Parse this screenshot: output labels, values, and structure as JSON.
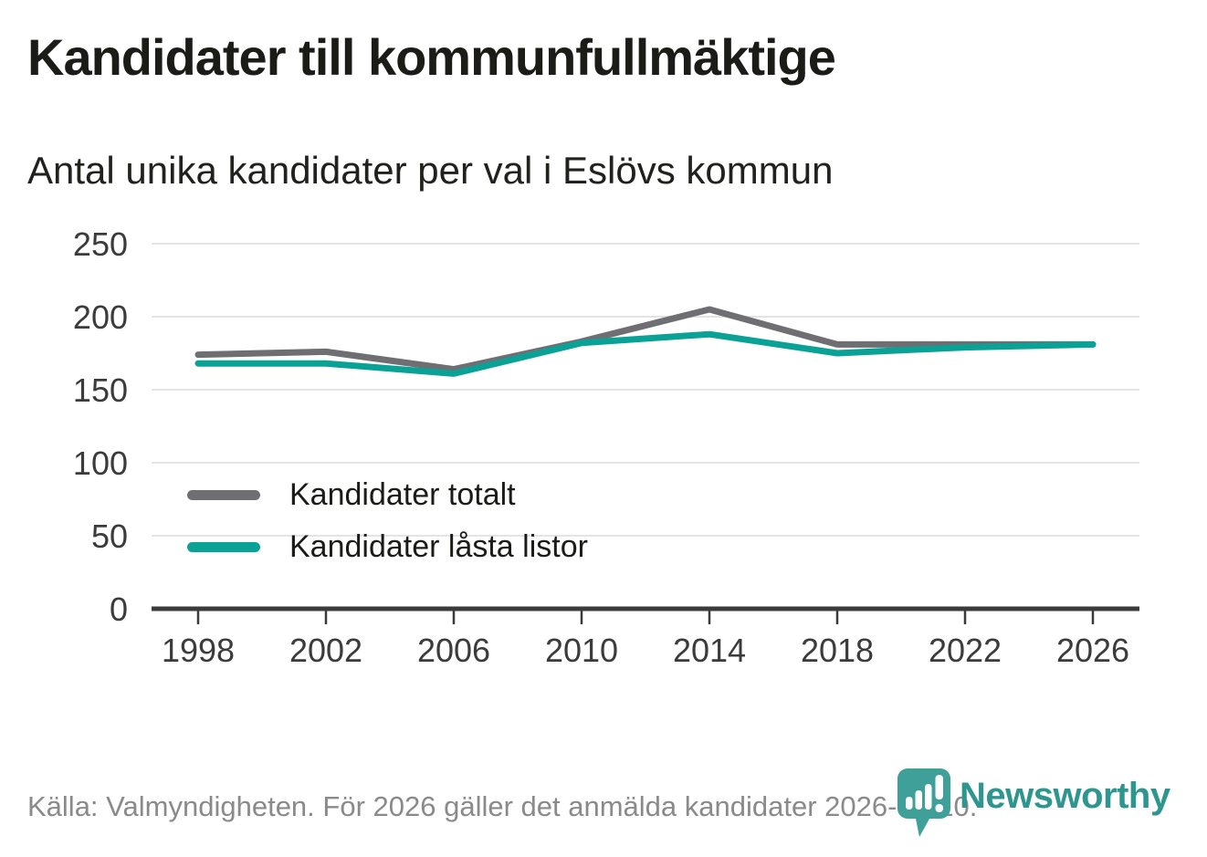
{
  "header": {
    "title": "Kandidater till kommunfullmäktige",
    "subtitle": "Antal unika kandidater per val i Eslövs kommun"
  },
  "chart_data": {
    "type": "line",
    "x": [
      1998,
      2002,
      2006,
      2010,
      2014,
      2018,
      2022,
      2026
    ],
    "series": [
      {
        "name": "Kandidater totalt",
        "color": "#6f6e72",
        "values": [
          174,
          176,
          164,
          183,
          205,
          181,
          181,
          181
        ]
      },
      {
        "name": "Kandidater låsta listor",
        "color": "#0aa296",
        "values": [
          168,
          168,
          161,
          182,
          188,
          175,
          179,
          181
        ]
      }
    ],
    "title": "Kandidater till kommunfullmäktige",
    "subtitle": "Antal unika kandidater per val i Eslövs kommun",
    "xlabel": "",
    "ylabel": "",
    "ylim": [
      0,
      250
    ],
    "yticks": [
      0,
      50,
      100,
      150,
      200,
      250
    ],
    "grid": true,
    "legend_position": "inside-left"
  },
  "footer": {
    "source": "Källa: Valmyndigheten. För 2026 gäller det anmälda kandidater 2026-04-10."
  },
  "branding": {
    "wordmark": "Newsworthy",
    "logo_icon": "newsworthy-pin-barchart-icon",
    "color": "#2f958f",
    "icon_color": "#3fa09a"
  },
  "style": {
    "axis_color": "#3b3b3b",
    "grid_color": "#e4e4e4",
    "tick_label_color": "#3b3b3b"
  }
}
